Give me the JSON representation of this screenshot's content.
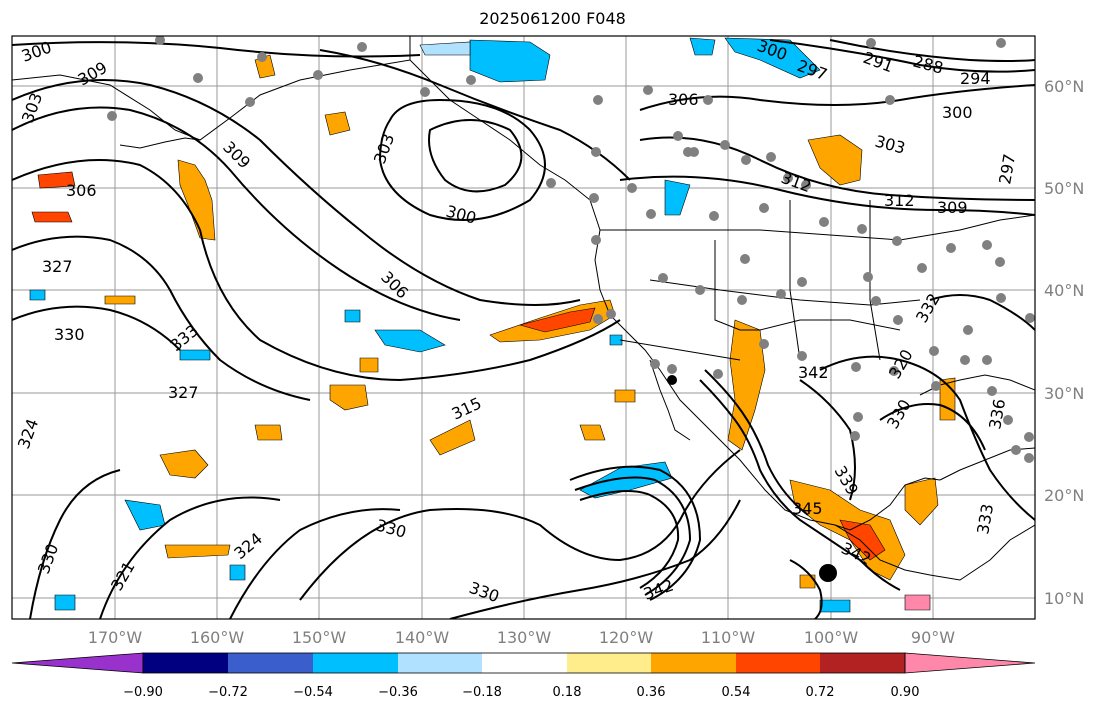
{
  "title": "2025061200 F048",
  "lat_labels": [
    "60°N",
    "50°N",
    "40°N",
    "30°N",
    "20°N",
    "10°N"
  ],
  "lon_labels": [
    "170°W",
    "160°W",
    "150°W",
    "140°W",
    "130°W",
    "120°W",
    "110°W",
    "100°W",
    "90°W"
  ],
  "contour_labels": [
    "300",
    "309",
    "303",
    "306",
    "327",
    "330",
    "333",
    "324",
    "327",
    "330",
    "321",
    "324",
    "330",
    "315",
    "342",
    "345",
    "342",
    "339",
    "333",
    "336",
    "330",
    "320",
    "297",
    "300",
    "303",
    "312",
    "309",
    "306",
    "300",
    "291",
    "288",
    "294",
    "297",
    "300",
    "303",
    "306",
    "309",
    "312",
    "330",
    "332",
    "342"
  ],
  "colorbar": {
    "ticks": [
      "−0.90",
      "−0.72",
      "−0.54",
      "−0.36",
      "−0.18",
      "0.18",
      "0.36",
      "0.54",
      "0.72",
      "0.90"
    ],
    "colors": [
      "#9932cc",
      "#000080",
      "#3a5fcd",
      "#00bfff",
      "#b0e2ff",
      "#ffffff",
      "#ffec8b",
      "#ffa500",
      "#ff4500",
      "#b22222",
      "#ff88aa"
    ]
  }
}
